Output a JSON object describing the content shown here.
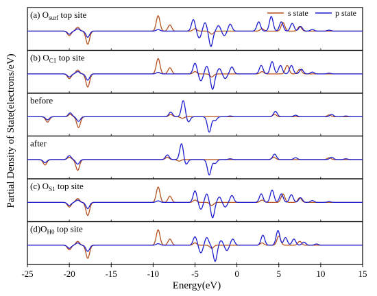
{
  "chart_data": {
    "type": "line",
    "xlabel": "Energy(eV)",
    "ylabel": "Partial Density of State(electrons/eV)",
    "xlim": [
      -25,
      15
    ],
    "xticks": [
      -25,
      -20,
      -15,
      -10,
      -5,
      0,
      5,
      10,
      15
    ],
    "legend": {
      "placement": "top-right",
      "entries": [
        "s state",
        "p state"
      ]
    },
    "colors": {
      "s": "#b5501e",
      "p": "#1b1bd0"
    },
    "panels": [
      {
        "label_main": "(a) O",
        "label_sub": "surf",
        "label_rest": " top site",
        "s": [
          [
            -20,
            -0.3
          ],
          [
            -19,
            0.25
          ],
          [
            -17.8,
            -0.85
          ],
          [
            -9.4,
            1.0
          ],
          [
            -8,
            0.4
          ],
          [
            -5,
            0.15
          ],
          [
            -3,
            -0.2
          ],
          [
            3,
            0.15
          ],
          [
            5.5,
            0.55
          ],
          [
            7.5,
            0.3
          ]
        ],
        "p": [
          [
            -20,
            -0.2
          ],
          [
            -19,
            0.15
          ],
          [
            -17.8,
            -0.4
          ],
          [
            -9.4,
            0.1
          ],
          [
            -5.2,
            0.75
          ],
          [
            -4.5,
            -0.45
          ],
          [
            -3.8,
            0.55
          ],
          [
            -3.1,
            -1.0
          ],
          [
            -2.2,
            0.35
          ],
          [
            -1.5,
            -0.3
          ],
          [
            -0.8,
            0.45
          ],
          [
            2.6,
            0.6
          ],
          [
            4.1,
            0.95
          ],
          [
            5.3,
            0.6
          ],
          [
            6.6,
            0.5
          ],
          [
            7.6,
            0.3
          ],
          [
            9,
            0.1
          ],
          [
            11,
            0.06
          ]
        ]
      },
      {
        "label_main": "(b) O",
        "label_sub": "C1",
        "label_rest": " top site",
        "s": [
          [
            -20,
            -0.3
          ],
          [
            -19,
            0.25
          ],
          [
            -17.8,
            -0.85
          ],
          [
            -9.4,
            1.0
          ],
          [
            -8,
            0.4
          ],
          [
            -5,
            0.15
          ],
          [
            -3,
            -0.2
          ],
          [
            3,
            0.15
          ],
          [
            6,
            0.55
          ],
          [
            7.5,
            0.3
          ]
        ],
        "p": [
          [
            -20,
            -0.2
          ],
          [
            -19,
            0.15
          ],
          [
            -17.8,
            -0.4
          ],
          [
            -9.4,
            0.1
          ],
          [
            -5,
            0.7
          ],
          [
            -4.3,
            -0.45
          ],
          [
            -3.6,
            0.5
          ],
          [
            -2.9,
            -1.0
          ],
          [
            -2.1,
            0.35
          ],
          [
            -1.4,
            -0.3
          ],
          [
            -0.6,
            0.45
          ],
          [
            2.9,
            0.55
          ],
          [
            4.2,
            0.8
          ],
          [
            5.2,
            0.55
          ],
          [
            6.5,
            0.55
          ],
          [
            7.7,
            0.3
          ],
          [
            9,
            0.12
          ],
          [
            11,
            0.05
          ]
        ]
      },
      {
        "label_main": "before",
        "label_sub": "",
        "label_rest": "",
        "s": [
          [
            -22.6,
            -0.35
          ],
          [
            -19.9,
            0.15
          ],
          [
            -18.9,
            -0.7
          ],
          [
            -7.9,
            0.15
          ],
          [
            -6.5,
            -0.1
          ],
          [
            4.5,
            0.15
          ],
          [
            11,
            0.12
          ]
        ],
        "p": [
          [
            -22.6,
            -0.2
          ],
          [
            -19.9,
            0.25
          ],
          [
            -18.9,
            -0.3
          ],
          [
            -7.9,
            0.3
          ],
          [
            -6.4,
            1.05
          ],
          [
            -5.8,
            -0.35
          ],
          [
            -3.3,
            -1.0
          ],
          [
            -2.6,
            -0.25
          ],
          [
            -0.8,
            0.05
          ],
          [
            4.6,
            0.35
          ],
          [
            7,
            0.1
          ],
          [
            11.3,
            0.15
          ],
          [
            13,
            0.05
          ]
        ]
      },
      {
        "label_main": "after",
        "label_sub": "",
        "label_rest": "",
        "s": [
          [
            -22.9,
            -0.35
          ],
          [
            -20,
            0.15
          ],
          [
            -19,
            -0.7
          ],
          [
            -8.3,
            0.15
          ],
          [
            -6.9,
            -0.1
          ],
          [
            4.4,
            0.15
          ],
          [
            11,
            0.12
          ]
        ],
        "p": [
          [
            -22.9,
            -0.2
          ],
          [
            -20,
            0.25
          ],
          [
            -19,
            -0.3
          ],
          [
            -8.3,
            0.3
          ],
          [
            -6.6,
            1.05
          ],
          [
            -6.1,
            -0.35
          ],
          [
            -3.3,
            -1.0
          ],
          [
            -2.6,
            -0.25
          ],
          [
            -0.8,
            0.05
          ],
          [
            4.5,
            0.35
          ],
          [
            7,
            0.12
          ],
          [
            11.3,
            0.15
          ],
          [
            13,
            0.05
          ]
        ]
      },
      {
        "label_main": "(c) O",
        "label_sub": "S1",
        "label_rest": " top site",
        "s": [
          [
            -20,
            -0.3
          ],
          [
            -19,
            0.25
          ],
          [
            -17.8,
            -0.85
          ],
          [
            -9.4,
            1.0
          ],
          [
            -8,
            0.4
          ],
          [
            -5,
            0.15
          ],
          [
            -3,
            -0.2
          ],
          [
            3,
            0.15
          ],
          [
            5.5,
            0.55
          ],
          [
            7.5,
            0.3
          ]
        ],
        "p": [
          [
            -20,
            -0.2
          ],
          [
            -19,
            0.15
          ],
          [
            -17.8,
            -0.4
          ],
          [
            -9.4,
            0.1
          ],
          [
            -5,
            0.75
          ],
          [
            -4.3,
            -0.45
          ],
          [
            -3.6,
            0.55
          ],
          [
            -2.9,
            -1.0
          ],
          [
            -2.1,
            0.35
          ],
          [
            -1.4,
            -0.3
          ],
          [
            -0.6,
            0.45
          ],
          [
            2.9,
            0.55
          ],
          [
            4.2,
            0.8
          ],
          [
            5.3,
            0.55
          ],
          [
            6.5,
            0.5
          ],
          [
            7.6,
            0.3
          ],
          [
            9,
            0.12
          ],
          [
            11,
            0.05
          ]
        ]
      },
      {
        "label_main": "(d)O",
        "label_sub": "H0",
        "label_rest": " top site",
        "s": [
          [
            -20,
            -0.3
          ],
          [
            -19,
            0.25
          ],
          [
            -17.8,
            -0.85
          ],
          [
            -9.4,
            1.0
          ],
          [
            -8,
            0.4
          ],
          [
            -5,
            0.15
          ],
          [
            -3,
            -0.2
          ],
          [
            3,
            0.15
          ],
          [
            5,
            0.6
          ],
          [
            7.5,
            0.25
          ]
        ],
        "p": [
          [
            -20,
            -0.2
          ],
          [
            -19,
            0.15
          ],
          [
            -17.8,
            -0.4
          ],
          [
            -9.4,
            0.1
          ],
          [
            -5,
            0.55
          ],
          [
            -4.3,
            -0.5
          ],
          [
            -3.6,
            0.5
          ],
          [
            -2.6,
            -1.05
          ],
          [
            -1.9,
            0.3
          ],
          [
            -1.2,
            -0.35
          ],
          [
            -0.5,
            0.4
          ],
          [
            3.1,
            0.65
          ],
          [
            4.9,
            0.95
          ],
          [
            5.8,
            0.5
          ],
          [
            6.8,
            0.4
          ],
          [
            8,
            0.2
          ],
          [
            9.5,
            0.08
          ]
        ]
      }
    ]
  }
}
